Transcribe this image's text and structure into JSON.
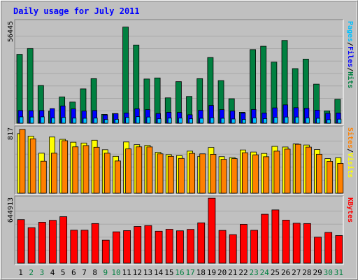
{
  "chart_data": {
    "type": "bar",
    "title": "Daily usage for July 2011",
    "categories": [
      "1",
      "2",
      "3",
      "4",
      "5",
      "6",
      "7",
      "8",
      "9",
      "10",
      "11",
      "12",
      "13",
      "14",
      "15",
      "16",
      "17",
      "18",
      "19",
      "20",
      "21",
      "22",
      "23",
      "24",
      "25",
      "26",
      "27",
      "28",
      "29",
      "30",
      "31"
    ],
    "weekend_days": [
      "2",
      "3",
      "9",
      "10",
      "16",
      "17",
      "23",
      "24",
      "30",
      "31"
    ],
    "panels": [
      {
        "id": "hits",
        "ymax_label": "56445",
        "ymax": 56445,
        "axis_labels": [
          {
            "text": "Pages",
            "color": "#00c0ff"
          },
          {
            "text": "Files",
            "color": "#0000ff"
          },
          {
            "text": "Hits",
            "color": "#008040"
          }
        ],
        "series": [
          {
            "name": "Hits",
            "color": "#008040",
            "values": [
              39100,
              42400,
              21400,
              6900,
              14900,
              12000,
              19500,
              25300,
              5000,
              5500,
              54600,
              44400,
              25100,
              25700,
              14400,
              23600,
              15200,
              25300,
              37300,
              24200,
              13900,
              6200,
              41800,
              43700,
              34700,
              47000,
              31000,
              36400,
              22200,
              7000,
              13600
            ]
          },
          {
            "name": "Files",
            "color": "#0000ff",
            "values": [
              7200,
              7100,
              7200,
              8300,
              9800,
              8100,
              6900,
              7200,
              4700,
              5400,
              5800,
              8200,
              7700,
              5500,
              6200,
              6100,
              4800,
              7300,
              10100,
              7700,
              6900,
              5800,
              7800,
              5800,
              8700,
              10400,
              8800,
              8500,
              7400,
              5600,
              5800
            ]
          },
          {
            "name": "Pages",
            "color": "#00c0ff",
            "values": [
              3600,
              3500,
              3600,
              3000,
              3300,
              2900,
              2800,
              2900,
              2100,
              2200,
              3300,
              3700,
              3500,
              2500,
              2900,
              2900,
              2500,
              2800,
              3100,
              2800,
              2400,
              2100,
              3000,
              2600,
              3300,
              3500,
              3500,
              3000,
              2800,
              2000,
              2300
            ]
          }
        ]
      },
      {
        "id": "visits",
        "ymax_label": "817",
        "ymax": 817,
        "axis_labels": [
          {
            "text": "Sites",
            "color": "#ff8000"
          },
          {
            "text": "Visits",
            "color": "#ffff00"
          }
        ],
        "series": [
          {
            "name": "Visits",
            "color": "#ffff00",
            "values": [
              748,
              716,
              502,
              705,
              676,
              640,
              630,
              665,
              546,
              463,
              643,
              609,
              600,
              513,
              484,
              472,
              528,
              463,
              574,
              459,
              447,
              543,
              517,
              499,
              588,
              580,
              618,
              605,
              548,
              434,
              445
            ]
          },
          {
            "name": "Sites",
            "color": "#ff8000",
            "values": [
              801,
              683,
              402,
              502,
              659,
              582,
              598,
              577,
              502,
              405,
              556,
              582,
              581,
              494,
              463,
              437,
              500,
              494,
              488,
              425,
              434,
              508,
              482,
              458,
              528,
              554,
              614,
              579,
              489,
              400,
              374
            ]
          }
        ]
      },
      {
        "id": "kbytes",
        "ymax_label": "644913",
        "ymax": 644913,
        "axis_labels": [
          {
            "text": "KBytes",
            "color": "#ff0000"
          }
        ],
        "series": [
          {
            "name": "KBytes",
            "color": "#ff0000",
            "values": [
              432000,
              352000,
              406000,
              425000,
              461000,
              327000,
              327000,
              393000,
              228000,
              311000,
              323000,
              364000,
              373000,
              317000,
              336000,
              321000,
              335000,
              400000,
              644000,
              325000,
              283000,
              385000,
              326000,
              485000,
              528000,
              427000,
              396000,
              393000,
              258000,
              305000,
              274000
            ]
          }
        ]
      }
    ],
    "xlabel": "",
    "ylabel": ""
  }
}
